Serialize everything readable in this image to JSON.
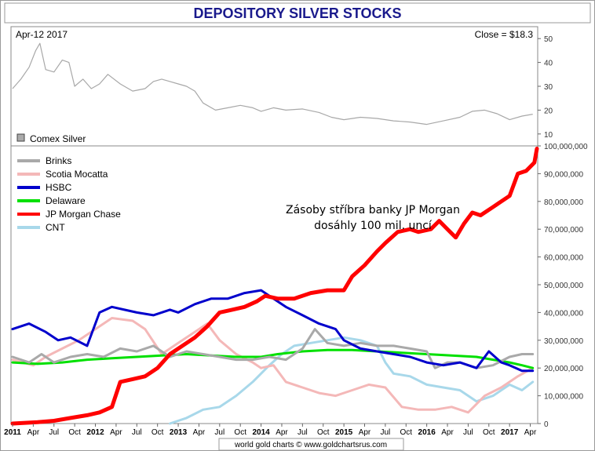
{
  "chart_data": [
    {
      "type": "line",
      "title": "DEPOSITORY SILVER STOCKS",
      "date_label": "Apr-12  2017",
      "close_label": "Close = $18.3",
      "legend": "Comex Silver",
      "ylim": [
        5,
        55
      ],
      "yticks": [
        10,
        20,
        30,
        40,
        50
      ],
      "xlim": [
        2011.0,
        2017.33
      ],
      "color": "#a8a8a8",
      "series": [
        {
          "name": "Comex Silver",
          "x": [
            2011.0,
            2011.1,
            2011.2,
            2011.28,
            2011.33,
            2011.4,
            2011.5,
            2011.6,
            2011.68,
            2011.75,
            2011.85,
            2011.95,
            2012.05,
            2012.15,
            2012.3,
            2012.45,
            2012.6,
            2012.7,
            2012.8,
            2012.9,
            2013.0,
            2013.1,
            2013.2,
            2013.3,
            2013.45,
            2013.6,
            2013.75,
            2013.9,
            2014.0,
            2014.15,
            2014.3,
            2014.5,
            2014.7,
            2014.85,
            2015.0,
            2015.2,
            2015.4,
            2015.6,
            2015.8,
            2016.0,
            2016.2,
            2016.4,
            2016.55,
            2016.7,
            2016.85,
            2017.0,
            2017.15,
            2017.28
          ],
          "y": [
            29,
            33,
            38,
            45,
            48,
            37,
            36,
            41,
            40,
            30,
            33,
            29,
            31,
            35,
            31,
            28,
            29,
            32,
            33,
            32,
            31,
            30,
            28,
            23,
            20,
            21,
            22,
            21,
            19.5,
            21,
            20,
            20.5,
            19,
            17,
            16,
            17,
            16.5,
            15.5,
            15,
            14,
            15.5,
            17,
            19.5,
            20,
            18.5,
            16,
            17.5,
            18.3
          ]
        }
      ]
    },
    {
      "type": "line",
      "ylim": [
        0,
        100000000
      ],
      "yticks": [
        "0",
        "10,000,000",
        "20,000,000",
        "30,000,000",
        "40,000,000",
        "50,000,000",
        "60,000,000",
        "70,000,000",
        "80,000,000",
        "90,000,000",
        "100,000,000"
      ],
      "xlim": [
        2011.0,
        2017.33
      ],
      "annotation": [
        "Zásoby stříbra banky JP Morgan",
        "dosáhly 100 mil. uncí"
      ],
      "xlabels": [
        {
          "label": "2011",
          "x": 2011.0,
          "year": true
        },
        {
          "label": "Apr",
          "x": 2011.25
        },
        {
          "label": "Jul",
          "x": 2011.5
        },
        {
          "label": "Oct",
          "x": 2011.75
        },
        {
          "label": "2012",
          "x": 2012.0,
          "year": true
        },
        {
          "label": "Apr",
          "x": 2012.25
        },
        {
          "label": "Jul",
          "x": 2012.5
        },
        {
          "label": "Oct",
          "x": 2012.75
        },
        {
          "label": "2013",
          "x": 2013.0,
          "year": true
        },
        {
          "label": "Apr",
          "x": 2013.25
        },
        {
          "label": "Jul",
          "x": 2013.5
        },
        {
          "label": "Oct",
          "x": 2013.75
        },
        {
          "label": "2014",
          "x": 2014.0,
          "year": true
        },
        {
          "label": "Apr",
          "x": 2014.25
        },
        {
          "label": "Jul",
          "x": 2014.5
        },
        {
          "label": "Oct",
          "x": 2014.75
        },
        {
          "label": "2015",
          "x": 2015.0,
          "year": true
        },
        {
          "label": "Apr",
          "x": 2015.25
        },
        {
          "label": "Jul",
          "x": 2015.5
        },
        {
          "label": "Oct",
          "x": 2015.75
        },
        {
          "label": "2016",
          "x": 2016.0,
          "year": true
        },
        {
          "label": "Apr",
          "x": 2016.25
        },
        {
          "label": "Jul",
          "x": 2016.5
        },
        {
          "label": "Oct",
          "x": 2016.75
        },
        {
          "label": "2017",
          "x": 2017.0,
          "year": true
        },
        {
          "label": "Apr",
          "x": 2017.25
        }
      ],
      "series": [
        {
          "name": "Brinks",
          "color": "#a9a9a9",
          "width": 3,
          "x": [
            2011.0,
            2011.2,
            2011.35,
            2011.5,
            2011.7,
            2011.9,
            2012.1,
            2012.3,
            2012.5,
            2012.7,
            2012.9,
            2013.1,
            2013.3,
            2013.5,
            2013.7,
            2013.9,
            2014.1,
            2014.3,
            2014.5,
            2014.65,
            2014.8,
            2015.0,
            2015.2,
            2015.4,
            2015.6,
            2015.8,
            2016.0,
            2016.1,
            2016.25,
            2016.4,
            2016.6,
            2016.8,
            2017.0,
            2017.15,
            2017.28
          ],
          "y": [
            24000000.0,
            22000000.0,
            25000000.0,
            22000000.0,
            24000000.0,
            25000000.0,
            24000000.0,
            27000000.0,
            26000000.0,
            28000000.0,
            24000000.0,
            26000000.0,
            25000000.0,
            24000000.0,
            23000000.0,
            23000000.0,
            24000000.0,
            23000000.0,
            27000000.0,
            34000000.0,
            29000000.0,
            28000000.0,
            29000000.0,
            28000000.0,
            28000000.0,
            27000000.0,
            26000000.0,
            20000000.0,
            22000000.0,
            22000000.0,
            20000000.0,
            21000000.0,
            24000000.0,
            25000000.0,
            25000000.0
          ]
        },
        {
          "name": "Scotia Mocatta",
          "color": "#f4b8b8",
          "width": 3,
          "x": [
            2011.0,
            2011.25,
            2011.4,
            2011.6,
            2011.8,
            2012.0,
            2012.2,
            2012.45,
            2012.6,
            2012.8,
            2013.0,
            2013.2,
            2013.35,
            2013.5,
            2013.7,
            2013.9,
            2014.0,
            2014.15,
            2014.3,
            2014.5,
            2014.7,
            2014.9,
            2015.1,
            2015.3,
            2015.5,
            2015.7,
            2015.9,
            2016.1,
            2016.3,
            2016.5,
            2016.7,
            2016.9,
            2017.1,
            2017.28
          ],
          "y": [
            23000000.0,
            21000000.0,
            24000000.0,
            27000000.0,
            30000000.0,
            34000000.0,
            38000000.0,
            37000000.0,
            34000000.0,
            25000000.0,
            29000000.0,
            33000000.0,
            36000000.0,
            30000000.0,
            25000000.0,
            22000000.0,
            20000000.0,
            21000000.0,
            15000000.0,
            13000000.0,
            11000000.0,
            10000000.0,
            12000000.0,
            14000000.0,
            13000000.0,
            6000000.0,
            5000000.0,
            5000000.0,
            6000000.0,
            4000000.0,
            10000000.0,
            13000000.0,
            17000000.0,
            20000000.0
          ]
        },
        {
          "name": "HSBC",
          "color": "#0000cc",
          "width": 3,
          "x": [
            2011.0,
            2011.2,
            2011.4,
            2011.55,
            2011.7,
            2011.9,
            2012.05,
            2012.2,
            2012.35,
            2012.5,
            2012.7,
            2012.9,
            2013.0,
            2013.2,
            2013.4,
            2013.6,
            2013.8,
            2014.0,
            2014.15,
            2014.3,
            2014.5,
            2014.7,
            2014.9,
            2015.0,
            2015.2,
            2015.4,
            2015.6,
            2015.8,
            2016.0,
            2016.2,
            2016.4,
            2016.6,
            2016.75,
            2016.9,
            2017.0,
            2017.15,
            2017.28
          ],
          "y": [
            34000000.0,
            36000000.0,
            33000000.0,
            30000000.0,
            31000000.0,
            28000000.0,
            40000000.0,
            42000000.0,
            41000000.0,
            40000000.0,
            39000000.0,
            41000000.0,
            40000000.0,
            43000000.0,
            45000000.0,
            45000000.0,
            47000000.0,
            48000000.0,
            45000000.0,
            42000000.0,
            39000000.0,
            36000000.0,
            34000000.0,
            30000000.0,
            27000000.0,
            26000000.0,
            25000000.0,
            24000000.0,
            22000000.0,
            21000000.0,
            22000000.0,
            20000000.0,
            26000000.0,
            22000000.0,
            21000000.0,
            19000000.0,
            19000000.0
          ]
        },
        {
          "name": "Delaware",
          "color": "#00e000",
          "width": 3,
          "x": [
            2011.0,
            2011.3,
            2011.6,
            2011.9,
            2012.2,
            2012.5,
            2012.8,
            2013.1,
            2013.4,
            2013.7,
            2014.0,
            2014.2,
            2014.5,
            2014.8,
            2015.1,
            2015.4,
            2015.7,
            2016.0,
            2016.3,
            2016.6,
            2016.8,
            2017.0,
            2017.15,
            2017.28
          ],
          "y": [
            22000000.0,
            21500000.0,
            22000000.0,
            23000000.0,
            23500000.0,
            24000000.0,
            24500000.0,
            25000000.0,
            24500000.0,
            24000000.0,
            24000000.0,
            25000000.0,
            26000000.0,
            26500000.0,
            26500000.0,
            26000000.0,
            25500000.0,
            25000000.0,
            24500000.0,
            24000000.0,
            23000000.0,
            22000000.0,
            21000000.0,
            20000000.0
          ]
        },
        {
          "name": "JP Morgan Chase",
          "color": "#ff0000",
          "width": 5,
          "x": [
            2011.0,
            2011.3,
            2011.5,
            2011.7,
            2011.9,
            2012.05,
            2012.2,
            2012.3,
            2012.45,
            2012.6,
            2012.75,
            2012.9,
            2013.05,
            2013.2,
            2013.35,
            2013.5,
            2013.65,
            2013.8,
            2013.95,
            2014.05,
            2014.2,
            2014.4,
            2014.6,
            2014.8,
            2015.0,
            2015.1,
            2015.25,
            2015.4,
            2015.5,
            2015.65,
            2015.8,
            2015.9,
            2016.05,
            2016.15,
            2016.25,
            2016.35,
            2016.45,
            2016.55,
            2016.65,
            2016.8,
            2016.9,
            2017.0,
            2017.1,
            2017.2,
            2017.3,
            2017.33
          ],
          "y": [
            0,
            500000.0,
            1000000.0,
            2000000.0,
            3000000.0,
            4000000.0,
            6000000.0,
            15000000.0,
            16000000.0,
            17000000.0,
            20000000.0,
            25000000.0,
            28000000.0,
            31000000.0,
            35000000.0,
            40000000.0,
            41000000.0,
            42000000.0,
            44000000.0,
            46000000.0,
            45000000.0,
            45000000.0,
            47000000.0,
            48000000.0,
            48000000.0,
            53000000.0,
            57000000.0,
            62000000.0,
            65000000.0,
            69000000.0,
            70000000.0,
            69000000.0,
            70000000.0,
            73000000.0,
            70000000.0,
            67000000.0,
            72000000.0,
            76000000.0,
            75000000.0,
            78000000.0,
            80000000.0,
            82000000.0,
            90000000.0,
            91000000.0,
            94000000.0,
            99000000.0
          ]
        },
        {
          "name": "CNT",
          "color": "#a8d8ea",
          "width": 3,
          "x": [
            2012.9,
            2013.1,
            2013.3,
            2013.5,
            2013.7,
            2013.9,
            2014.1,
            2014.25,
            2014.4,
            2014.6,
            2014.8,
            2015.0,
            2015.2,
            2015.4,
            2015.5,
            2015.6,
            2015.8,
            2016.0,
            2016.2,
            2016.4,
            2016.6,
            2016.8,
            2017.0,
            2017.15,
            2017.28
          ],
          "y": [
            0,
            2000000.0,
            5000000.0,
            6000000.0,
            10000000.0,
            15000000.0,
            21000000.0,
            25000000.0,
            28000000.0,
            29000000.0,
            30000000.0,
            31000000.0,
            30000000.0,
            28000000.0,
            22000000.0,
            18000000.0,
            17000000.0,
            14000000.0,
            13000000.0,
            12000000.0,
            8000000.0,
            10000000.0,
            14000000.0,
            12000000.0,
            15000000.0
          ]
        }
      ]
    }
  ],
  "credit": "world gold charts © www.goldchartsrus.com"
}
